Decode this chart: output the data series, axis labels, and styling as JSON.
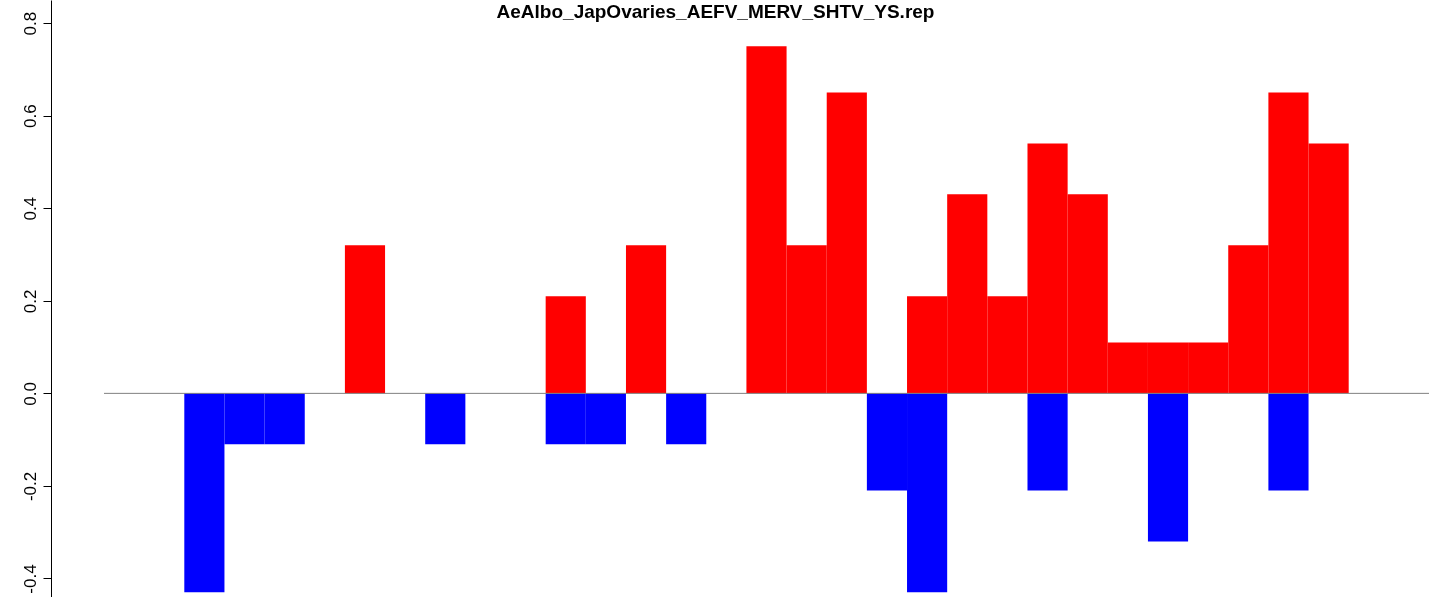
{
  "chart_data": {
    "type": "bar",
    "title": "AeAlbo_JapOvaries_AEFV_MERV_SHTV_YS.rep",
    "categories": [
      null,
      null,
      null,
      null,
      null,
      null,
      null,
      null,
      null,
      null,
      null,
      null,
      null,
      null,
      null,
      null,
      null,
      null,
      null,
      null,
      null,
      null,
      null,
      null,
      null,
      null,
      null,
      null,
      null,
      null,
      null,
      null,
      null
    ],
    "series": [
      {
        "color": "#ff0000",
        "values": [
          null,
          null,
          null,
          null,
          null,
          null,
          0.32,
          null,
          null,
          null,
          null,
          0.21,
          null,
          0.32,
          null,
          null,
          0.75,
          0.32,
          0.65,
          null,
          0.21,
          0.43,
          0.21,
          0.54,
          0.43,
          0.11,
          0.11,
          0.11,
          0.32,
          0.65,
          0.54,
          null,
          null
        ]
      },
      {
        "color": "#0000ff",
        "values": [
          null,
          null,
          -0.43,
          -0.11,
          -0.11,
          null,
          null,
          null,
          -0.11,
          null,
          null,
          -0.11,
          -0.11,
          null,
          -0.11,
          null,
          null,
          null,
          null,
          -0.21,
          -0.43,
          null,
          null,
          -0.21,
          null,
          null,
          -0.32,
          null,
          null,
          -0.21,
          null,
          null,
          null
        ]
      }
    ],
    "ylim": [
      -0.44,
      0.85
    ],
    "yticks": [
      -0.4,
      -0.2,
      {
        "value": 0,
        "label": "0.0"
      },
      0.2,
      0.4,
      0.6,
      0.8
    ],
    "ref_lines": [
      {
        "axis": "y",
        "value": 0,
        "color": "#808080"
      }
    ],
    "tick_labels": "y"
  }
}
